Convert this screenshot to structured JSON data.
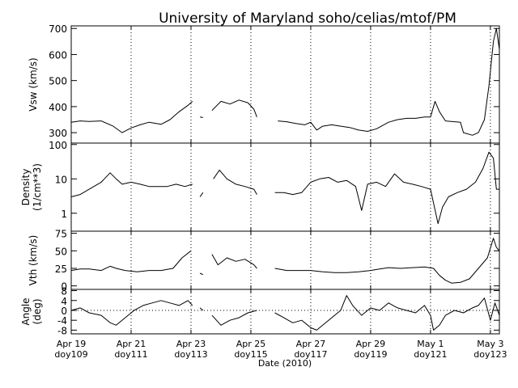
{
  "title": "University of Maryland  soho/celias/mtof/PM",
  "xlabel": "Date (2010)",
  "colors": {
    "background": "#ffffff",
    "line": "#000000"
  },
  "chart_data": [
    {
      "type": "line",
      "ylabel": "Vsw (km/s)",
      "ylim": [
        260,
        710
      ],
      "yticks": [
        300,
        400,
        500,
        600,
        700
      ],
      "grid": "vertical dotted at x ticks",
      "series": [
        {
          "points": [
            [
              109,
              340
            ],
            [
              109.3,
              345
            ],
            [
              109.6,
              343
            ],
            [
              110,
              345
            ],
            [
              110.4,
              325
            ],
            [
              110.7,
              300
            ],
            [
              111,
              318
            ],
            [
              111.3,
              330
            ],
            [
              111.6,
              340
            ],
            [
              112,
              332
            ],
            [
              112.3,
              350
            ],
            [
              112.6,
              380
            ],
            [
              112.9,
              405
            ],
            [
              113.05,
              420
            ],
            [
              null,
              null
            ],
            [
              113.3,
              360
            ],
            [
              113.4,
              358
            ],
            [
              null,
              null
            ],
            [
              113.7,
              385
            ],
            [
              114,
              420
            ],
            [
              114.3,
              410
            ],
            [
              114.6,
              425
            ],
            [
              114.9,
              415
            ],
            [
              115.1,
              390
            ],
            [
              115.2,
              360
            ],
            [
              null,
              null
            ],
            [
              115.9,
              345
            ],
            [
              116.2,
              342
            ],
            [
              116.5,
              335
            ],
            [
              116.8,
              330
            ],
            [
              117,
              340
            ],
            [
              117.2,
              310
            ],
            [
              117.4,
              325
            ],
            [
              117.7,
              330
            ],
            [
              118,
              325
            ],
            [
              118.3,
              320
            ],
            [
              118.6,
              310
            ],
            [
              118.9,
              305
            ],
            [
              119.2,
              315
            ],
            [
              119.6,
              340
            ],
            [
              119.9,
              350
            ],
            [
              120.2,
              355
            ],
            [
              120.5,
              355
            ],
            [
              120.8,
              360
            ],
            [
              121,
              360
            ],
            [
              121.15,
              420
            ],
            [
              121.3,
              380
            ],
            [
              121.5,
              345
            ],
            [
              122,
              340
            ],
            [
              122.1,
              300
            ],
            [
              122.4,
              290
            ],
            [
              122.6,
              300
            ],
            [
              122.8,
              350
            ],
            [
              122.95,
              480
            ],
            [
              123.1,
              650
            ],
            [
              123.2,
              700
            ],
            [
              123.3,
              620
            ]
          ]
        }
      ]
    },
    {
      "type": "line",
      "ylabel": "Density\n(1/cm**3)",
      "ylim": [
        0.3,
        110
      ],
      "yscale": "log",
      "yticks": [
        1,
        10,
        100
      ],
      "grid": "vertical dotted at x ticks",
      "series": [
        {
          "points": [
            [
              109,
              3
            ],
            [
              109.3,
              3.5
            ],
            [
              109.6,
              5
            ],
            [
              110,
              8
            ],
            [
              110.3,
              15
            ],
            [
              110.5,
              10
            ],
            [
              110.7,
              7
            ],
            [
              111,
              8
            ],
            [
              111.3,
              7
            ],
            [
              111.6,
              6
            ],
            [
              111.9,
              6
            ],
            [
              112.2,
              6
            ],
            [
              112.5,
              7
            ],
            [
              112.8,
              6
            ],
            [
              113.05,
              7
            ],
            [
              null,
              null
            ],
            [
              113.3,
              3
            ],
            [
              113.4,
              4
            ],
            [
              null,
              null
            ],
            [
              113.75,
              10
            ],
            [
              113.95,
              18
            ],
            [
              114.2,
              10
            ],
            [
              114.5,
              7
            ],
            [
              114.8,
              6
            ],
            [
              115.1,
              5
            ],
            [
              115.2,
              3.5
            ],
            [
              null,
              null
            ],
            [
              115.8,
              4
            ],
            [
              116.1,
              4
            ],
            [
              116.4,
              3.5
            ],
            [
              116.7,
              4
            ],
            [
              117,
              8
            ],
            [
              117.3,
              10
            ],
            [
              117.6,
              11
            ],
            [
              117.9,
              8
            ],
            [
              118.2,
              9
            ],
            [
              118.5,
              6
            ],
            [
              118.7,
              1.2
            ],
            [
              118.9,
              7
            ],
            [
              119.2,
              8
            ],
            [
              119.5,
              6
            ],
            [
              119.8,
              14
            ],
            [
              120.1,
              8
            ],
            [
              120.4,
              7
            ],
            [
              120.7,
              6
            ],
            [
              121,
              5
            ],
            [
              121.1,
              2
            ],
            [
              121.25,
              0.5
            ],
            [
              121.4,
              1.5
            ],
            [
              121.6,
              3
            ],
            [
              121.9,
              4
            ],
            [
              122.2,
              5
            ],
            [
              122.5,
              8
            ],
            [
              122.75,
              20
            ],
            [
              122.95,
              60
            ],
            [
              123.1,
              40
            ],
            [
              123.2,
              5
            ],
            [
              123.3,
              5
            ]
          ]
        }
      ]
    },
    {
      "type": "line",
      "ylabel": "Vth (km/s)",
      "ylim": [
        -5,
        78
      ],
      "yticks": [
        0,
        25,
        50,
        75
      ],
      "grid": "vertical dotted at x ticks",
      "series": [
        {
          "points": [
            [
              109,
              22
            ],
            [
              109.3,
              24
            ],
            [
              109.6,
              24
            ],
            [
              110,
              22
            ],
            [
              110.3,
              28
            ],
            [
              110.5,
              25
            ],
            [
              110.8,
              22
            ],
            [
              111.2,
              20
            ],
            [
              111.6,
              22
            ],
            [
              112,
              22
            ],
            [
              112.4,
              25
            ],
            [
              112.7,
              40
            ],
            [
              113,
              50
            ],
            [
              null,
              null
            ],
            [
              113.3,
              18
            ],
            [
              113.4,
              16
            ],
            [
              null,
              null
            ],
            [
              113.7,
              45
            ],
            [
              113.9,
              30
            ],
            [
              114.2,
              40
            ],
            [
              114.5,
              35
            ],
            [
              114.8,
              38
            ],
            [
              115.1,
              30
            ],
            [
              115.2,
              25
            ],
            [
              null,
              null
            ],
            [
              115.8,
              25
            ],
            [
              116.2,
              22
            ],
            [
              116.6,
              22
            ],
            [
              117,
              22
            ],
            [
              117.4,
              20
            ],
            [
              117.8,
              19
            ],
            [
              118.2,
              19
            ],
            [
              118.6,
              20
            ],
            [
              119,
              22
            ],
            [
              119.3,
              24
            ],
            [
              119.6,
              26
            ],
            [
              120,
              25
            ],
            [
              120.4,
              26
            ],
            [
              120.8,
              27
            ],
            [
              121.1,
              25
            ],
            [
              121.3,
              15
            ],
            [
              121.5,
              8
            ],
            [
              121.7,
              4
            ],
            [
              122,
              5
            ],
            [
              122.3,
              10
            ],
            [
              122.6,
              25
            ],
            [
              122.9,
              40
            ],
            [
              123.1,
              68
            ],
            [
              123.2,
              55
            ],
            [
              123.3,
              50
            ]
          ]
        }
      ]
    },
    {
      "type": "line",
      "ylabel": "Angle\n(deg)",
      "ylim": [
        -9.5,
        8.5
      ],
      "yticks": [
        -8,
        -4,
        0,
        4,
        8
      ],
      "grid": "vertical dotted at x ticks; horizontal dotted at y = 0",
      "series": [
        {
          "points": [
            [
              109,
              0
            ],
            [
              109.3,
              1
            ],
            [
              109.6,
              -1
            ],
            [
              110,
              -2
            ],
            [
              110.3,
              -5
            ],
            [
              110.5,
              -6
            ],
            [
              110.8,
              -3
            ],
            [
              111.1,
              0
            ],
            [
              111.4,
              2
            ],
            [
              111.7,
              3
            ],
            [
              112,
              4
            ],
            [
              112.3,
              3
            ],
            [
              112.6,
              2
            ],
            [
              112.9,
              4
            ],
            [
              113.05,
              2
            ],
            [
              null,
              null
            ],
            [
              113.3,
              1
            ],
            [
              113.4,
              0
            ],
            [
              null,
              null
            ],
            [
              113.7,
              -2
            ],
            [
              114,
              -6
            ],
            [
              114.3,
              -4
            ],
            [
              114.6,
              -3
            ],
            [
              114.9,
              -1
            ],
            [
              115.2,
              0
            ],
            [
              null,
              null
            ],
            [
              115.8,
              -1
            ],
            [
              116.1,
              -3
            ],
            [
              116.4,
              -5
            ],
            [
              116.7,
              -4
            ],
            [
              117,
              -7
            ],
            [
              117.2,
              -8
            ],
            [
              117.4,
              -6
            ],
            [
              117.7,
              -3
            ],
            [
              118,
              0
            ],
            [
              118.2,
              6
            ],
            [
              118.4,
              2
            ],
            [
              118.7,
              -2
            ],
            [
              119,
              1
            ],
            [
              119.3,
              0
            ],
            [
              119.6,
              3
            ],
            [
              119.9,
              1
            ],
            [
              120.2,
              0
            ],
            [
              120.5,
              -1
            ],
            [
              120.8,
              2
            ],
            [
              121,
              -2
            ],
            [
              121.1,
              -8
            ],
            [
              121.3,
              -6
            ],
            [
              121.5,
              -2
            ],
            [
              121.8,
              0
            ],
            [
              122.1,
              -1
            ],
            [
              122.4,
              1
            ],
            [
              122.6,
              2
            ],
            [
              122.8,
              5
            ],
            [
              123,
              -4
            ],
            [
              123.15,
              3
            ],
            [
              123.3,
              -2
            ]
          ]
        }
      ]
    }
  ],
  "xaxis": {
    "range": [
      109,
      123.3
    ],
    "ticks": [
      {
        "x": 109,
        "date": "Apr 19",
        "doy": "doy109"
      },
      {
        "x": 111,
        "date": "Apr 21",
        "doy": "doy111"
      },
      {
        "x": 113,
        "date": "Apr 23",
        "doy": "doy113"
      },
      {
        "x": 115,
        "date": "Apr 25",
        "doy": "doy115"
      },
      {
        "x": 117,
        "date": "Apr 27",
        "doy": "doy117"
      },
      {
        "x": 119,
        "date": "Apr 29",
        "doy": "doy119"
      },
      {
        "x": 121,
        "date": "May 1",
        "doy": "doy121"
      },
      {
        "x": 123,
        "date": "May 3",
        "doy": "doy123"
      }
    ]
  }
}
